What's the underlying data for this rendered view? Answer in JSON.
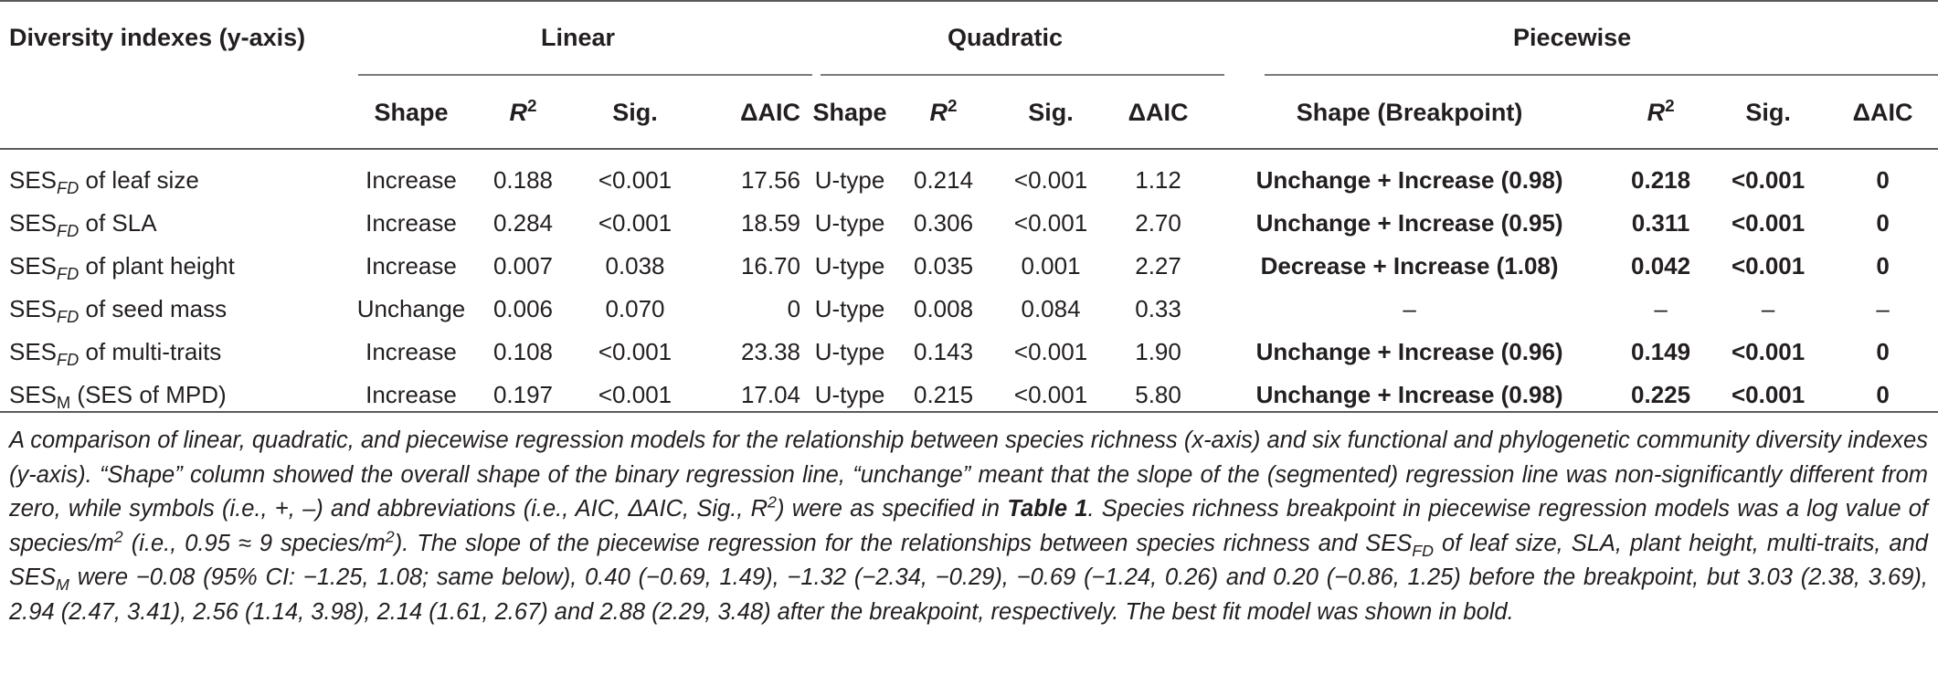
{
  "header": {
    "diversity_indexes": "Diversity indexes (y-axis)",
    "linear": "Linear",
    "quadratic": "Quadratic",
    "piecewise": "Piecewise",
    "shape": "Shape",
    "r2_base": "R",
    "r2_sup": "2",
    "sig": "Sig.",
    "daic": "ΔAIC",
    "shape_breakpoint": "Shape (Breakpoint)"
  },
  "rows": [
    {
      "base": "SES",
      "sub": "FD",
      "rest": " of leaf size",
      "lin": [
        "Increase",
        "0.188",
        "<0.001",
        "17.56"
      ],
      "quad": [
        "U-type",
        "0.214",
        "<0.001",
        "1.12"
      ],
      "pw": [
        "Unchange + Increase (0.98)",
        "0.218",
        "<0.001",
        "0"
      ]
    },
    {
      "base": "SES",
      "sub": "FD",
      "rest": " of SLA",
      "lin": [
        "Increase",
        "0.284",
        "<0.001",
        "18.59"
      ],
      "quad": [
        "U-type",
        "0.306",
        "<0.001",
        "2.70"
      ],
      "pw": [
        "Unchange + Increase (0.95)",
        "0.311",
        "<0.001",
        "0"
      ]
    },
    {
      "base": "SES",
      "sub": "FD",
      "rest": " of plant height",
      "lin": [
        "Increase",
        "0.007",
        "0.038",
        "16.70"
      ],
      "quad": [
        "U-type",
        "0.035",
        "0.001",
        "2.27"
      ],
      "pw": [
        "Decrease + Increase (1.08)",
        "0.042",
        "<0.001",
        "0"
      ]
    },
    {
      "base": "SES",
      "sub": "FD",
      "rest": " of seed mass",
      "lin": [
        "Unchange",
        "0.006",
        "0.070",
        "0"
      ],
      "quad": [
        "U-type",
        "0.008",
        "0.084",
        "0.33"
      ],
      "pw": [
        "–",
        "–",
        "–",
        "–"
      ]
    },
    {
      "base": "SES",
      "sub": "FD",
      "rest": " of multi-traits",
      "lin": [
        "Increase",
        "0.108",
        "<0.001",
        "23.38"
      ],
      "quad": [
        "U-type",
        "0.143",
        "<0.001",
        "1.90"
      ],
      "pw": [
        "Unchange + Increase (0.96)",
        "0.149",
        "<0.001",
        "0"
      ]
    },
    {
      "base": "SES",
      "sub": "M",
      "rest": " (SES of MPD)",
      "lin": [
        "Increase",
        "0.197",
        "<0.001",
        "17.04"
      ],
      "quad": [
        "U-type",
        "0.215",
        "<0.001",
        "5.80"
      ],
      "pw": [
        "Unchange + Increase (0.98)",
        "0.225",
        "<0.001",
        "0"
      ]
    }
  ],
  "caption": {
    "p1": "A comparison of linear, quadratic, and piecewise regression models for the relationship between species richness (x-axis) and six functional and phylogenetic community diversity indexes (y-axis). “Shape” column showed the overall shape of the binary regression line, “unchange” meant that the slope of the (segmented) regression line was non-significantly different from zero, while symbols (i.e., +, –) and abbreviations (i.e., AIC, ΔAIC, Sig., R",
    "p1_sup": "2",
    "p2": ") were as specified in ",
    "table_ref": "Table 1",
    "p3": ". Species richness breakpoint in piecewise regression models was a log value of species/m",
    "p3_sup": "2",
    "p4": " (i.e., 0.95 ≈ 9 species/m",
    "p4_sup": "2",
    "p5": "). The slope of the piecewise regression for the relationships between species richness and SES",
    "p5_sub": "FD",
    "p6": " of leaf size, SLA, plant height, multi-traits, and SES",
    "p6_sub": "M",
    "p7": " were −0.08 (95% CI: −1.25, 1.08; same below), 0.40 (−0.69, 1.49), −1.32 (−2.34, −0.29), −0.69 (−1.24, 0.26) and 0.20 (−0.86, 1.25) before the breakpoint, but 3.03 (2.38, 3.69), 2.94 (2.47, 3.41), 2.56 (1.14, 3.98), 2.14 (1.61, 2.67) and 2.88 (2.29, 3.48) after the breakpoint, respectively. The best fit model was shown in bold."
  }
}
